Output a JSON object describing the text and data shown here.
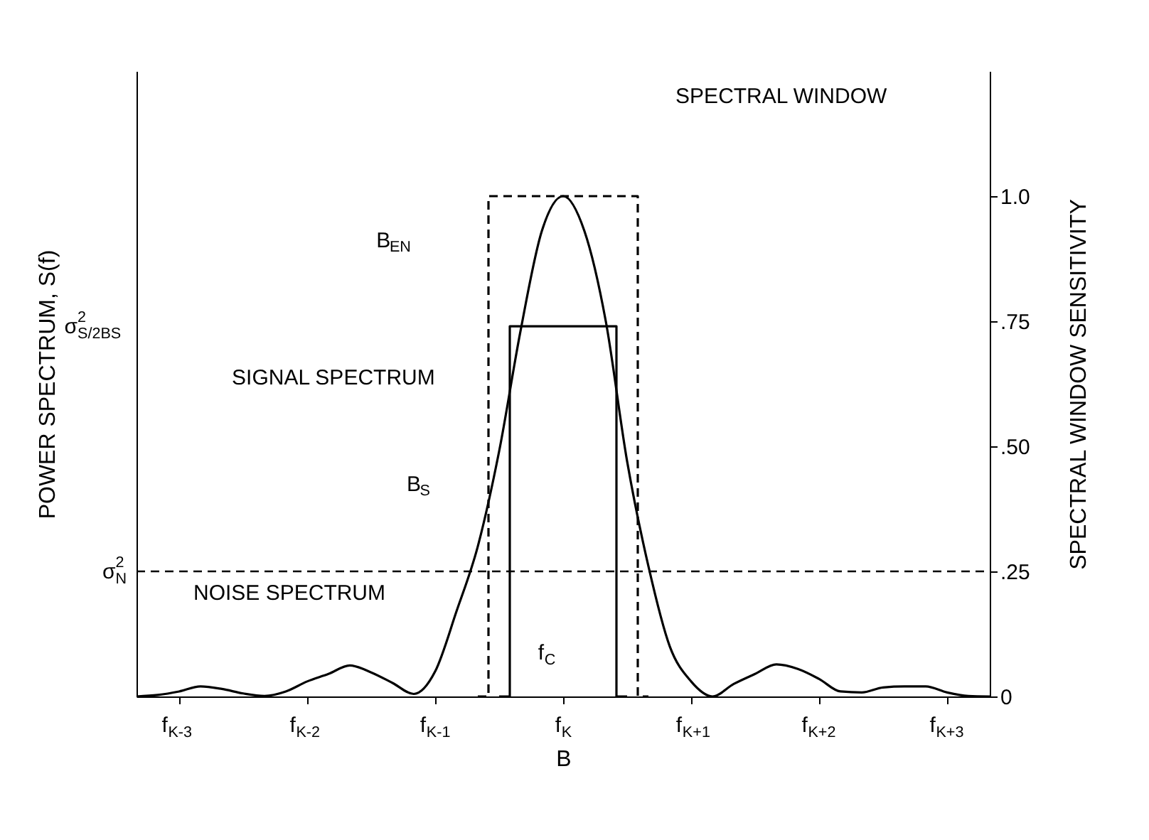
{
  "chart_data": {
    "type": "line",
    "xlabel": "B",
    "ylabel": "POWER SPECTRUM, S(f)",
    "y2label": "SPECTRAL WINDOW SENSITIVITY",
    "categories": [
      null,
      null,
      "f$_{K-3}$",
      null,
      null,
      null,
      null,
      null,
      "f$_{K-2}$",
      null,
      null,
      null,
      null,
      null,
      "f$_{K-1}$",
      null,
      null,
      null,
      null,
      null,
      "f$_{K}$",
      null,
      null,
      null,
      null,
      null,
      "f$_{K+1}$",
      null,
      null,
      null,
      null,
      null,
      "f$_{K+2}$",
      null,
      null,
      null,
      null,
      null,
      "f$_{K+3}$",
      null,
      null
    ],
    "y2lim": [
      0,
      1.25
    ],
    "y2ticks": [
      0,
      {
        "value": 0.25,
        "label": ".25"
      },
      {
        "value": 0.5,
        "label": ".50"
      },
      {
        "value": 0.75,
        "label": ".75"
      },
      {
        "value": 1.0,
        "label": "1.0"
      }
    ],
    "grid": false,
    "marker": "none",
    "series": [
      {
        "axis": "y2",
        "color": "#000000",
        "line_style": "solid",
        "values": [
          0,
          0.003,
          0.01,
          0.02,
          0.015,
          0.006,
          0.001,
          0.01,
          0.03,
          0.045,
          0.062,
          0.048,
          0.027,
          0.005,
          0.05,
          0.17,
          0.3,
          0.49,
          0.73,
          0.93,
          1.0,
          0.93,
          0.75,
          0.47,
          0.26,
          0.1,
          0.03,
          0,
          0.025,
          0.045,
          0.064,
          0.055,
          0.035,
          0.01,
          0.008,
          0.018,
          0.02,
          0.02,
          0.008,
          0.001,
          0
        ]
      },
      {
        "type": "step",
        "axis": "y2",
        "color": "#000000",
        "line_style": "solid",
        "values": [
          null,
          null,
          null,
          null,
          null,
          null,
          null,
          null,
          null,
          null,
          null,
          null,
          null,
          null,
          null,
          null,
          null,
          0,
          0.74,
          0.74,
          0.74,
          0.74,
          0.74,
          0,
          null,
          null,
          null,
          null,
          null,
          null,
          null,
          null,
          null,
          null,
          null,
          null,
          null,
          null,
          null,
          null,
          null
        ]
      },
      {
        "type": "step",
        "axis": "y2",
        "color": "#000000",
        "line_style": "dashed",
        "values": [
          null,
          null,
          null,
          null,
          null,
          null,
          null,
          null,
          null,
          null,
          null,
          null,
          null,
          null,
          null,
          null,
          0,
          1.0,
          1.0,
          1.0,
          1.0,
          1.0,
          1.0,
          1.0,
          0,
          null,
          null,
          null,
          null,
          null,
          null,
          null,
          null,
          null,
          null,
          null,
          null,
          null,
          null,
          null,
          null
        ]
      }
    ],
    "ref_lines": [
      {
        "axis": "y2",
        "value": 0.25,
        "label": "NOISE SPECTRUM",
        "line_style": "dashed",
        "color": "#000000"
      }
    ],
    "annotations": [
      "σ$^{2}$$_{N}$",
      "σ$^{2}$$_{S/2BS}$",
      "SPECTRAL WINDOW",
      "B$_{EN}$",
      "SIGNAL SPECTRUM",
      "B$_{S}$",
      "f$_{C}$"
    ]
  }
}
